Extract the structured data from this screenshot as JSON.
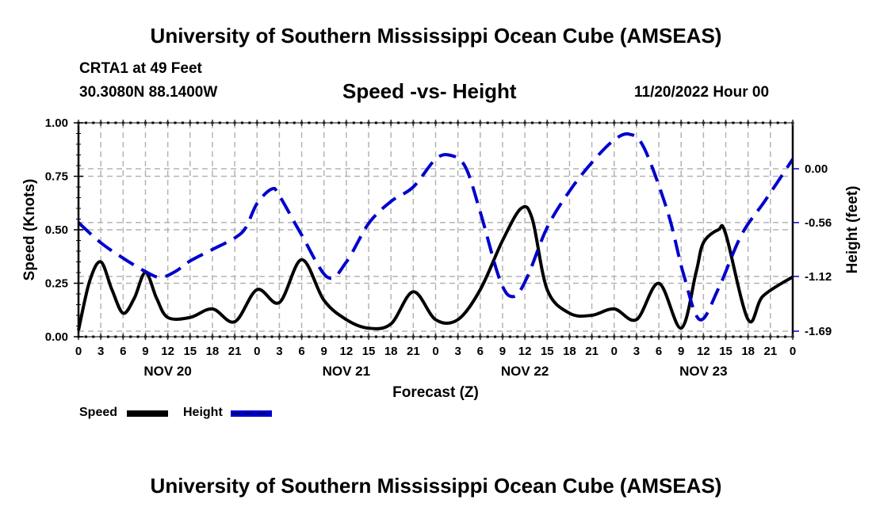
{
  "header": {
    "title_top": "University of Southern Mississippi Ocean Cube (AMSEAS)",
    "station": "CRTA1 at 49 Feet",
    "coordinates": "30.3080N  88.1400W",
    "subtitle": "Speed -vs- Height",
    "datetime": "11/20/2022 Hour 00",
    "title_bottom": "University of Southern Mississippi Ocean Cube (AMSEAS)"
  },
  "colors": {
    "speed": "#000000",
    "height": "#0000cc",
    "grid": "#b4b4b4"
  },
  "chart_data": {
    "type": "line",
    "title": "Speed -vs- Height",
    "xlabel": "Forecast (Z)",
    "ylabel": "Speed (Knots)",
    "y2label": "Height (feet)",
    "xlim_hours": [
      0,
      96
    ],
    "x_tick_labels": [
      "0",
      "3",
      "6",
      "9",
      "12",
      "15",
      "18",
      "21",
      "0",
      "3",
      "6",
      "9",
      "12",
      "15",
      "18",
      "21",
      "0",
      "3",
      "6",
      "9",
      "12",
      "15",
      "18",
      "21",
      "0",
      "3",
      "6",
      "9",
      "12",
      "15",
      "18",
      "21",
      "0"
    ],
    "day_labels": [
      {
        "label": "NOV 20",
        "hour": 12
      },
      {
        "label": "NOV 21",
        "hour": 36
      },
      {
        "label": "NOV 22",
        "hour": 60
      },
      {
        "label": "NOV 23",
        "hour": 84
      }
    ],
    "ylim": [
      0,
      1
    ],
    "y_ticks": [
      "0.00",
      "0.25",
      "0.50",
      "0.75",
      "1.00"
    ],
    "y2lim": [
      -1.69,
      0.0
    ],
    "y2_ticks": [
      "-1.69",
      "-1.12",
      "-0.56",
      "0.00"
    ],
    "grid": true,
    "legend": {
      "placement": "bottom-left",
      "entries": [
        "Speed",
        "Height"
      ]
    },
    "series": [
      {
        "name": "Speed",
        "axis": "left",
        "style": "solid",
        "hours": [
          0,
          1.5,
          3,
          4.5,
          6,
          7.5,
          9,
          10.5,
          12,
          15,
          18,
          21,
          24,
          27,
          30,
          33,
          36,
          39,
          42,
          45,
          48,
          51,
          54,
          57,
          59.5,
          61,
          63,
          66,
          69,
          72,
          75,
          78,
          81,
          83,
          84,
          86,
          87,
          90,
          92,
          96
        ],
        "values": [
          0.03,
          0.26,
          0.35,
          0.22,
          0.11,
          0.18,
          0.3,
          0.18,
          0.09,
          0.09,
          0.13,
          0.07,
          0.22,
          0.16,
          0.36,
          0.17,
          0.08,
          0.04,
          0.06,
          0.21,
          0.08,
          0.08,
          0.22,
          0.45,
          0.6,
          0.55,
          0.22,
          0.11,
          0.1,
          0.13,
          0.08,
          0.25,
          0.04,
          0.3,
          0.44,
          0.5,
          0.48,
          0.08,
          0.19,
          0.28
        ]
      },
      {
        "name": "Height",
        "axis": "right",
        "style": "dashed",
        "hours": [
          0,
          3,
          6,
          9,
          11,
          13,
          15,
          18,
          21,
          22.5,
          24,
          26,
          27,
          30,
          33.5,
          36,
          39,
          42,
          45,
          48,
          50,
          52,
          54,
          56.7,
          58.5,
          60.3,
          63,
          66.2,
          69.4,
          72,
          74,
          76,
          79.2,
          81.3,
          83.5,
          86,
          89.1,
          92.3,
          96
        ],
        "values": [
          -0.56,
          -0.77,
          -0.93,
          -1.07,
          -1.13,
          -1.07,
          -0.96,
          -0.84,
          -0.72,
          -0.61,
          -0.36,
          -0.21,
          -0.28,
          -0.69,
          -1.13,
          -0.97,
          -0.57,
          -0.34,
          -0.19,
          0.1,
          0.14,
          0.02,
          -0.45,
          -1.17,
          -1.33,
          -1.13,
          -0.61,
          -0.21,
          0.1,
          0.3,
          0.36,
          0.22,
          -0.45,
          -1.09,
          -1.57,
          -1.25,
          -0.69,
          -0.33,
          0.1
        ]
      }
    ]
  }
}
